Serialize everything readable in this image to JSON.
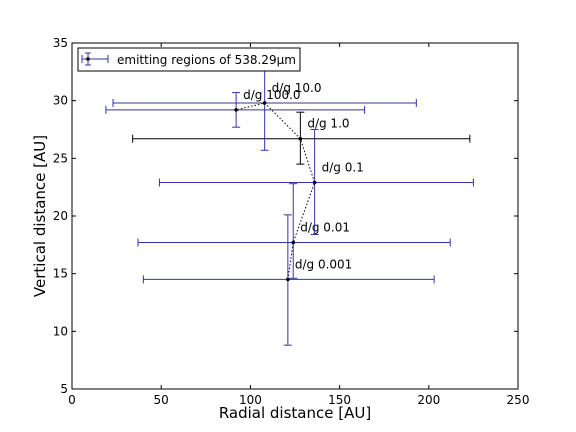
{
  "chart_data": {
    "type": "scatter",
    "xlabel": "Radial distance [AU]",
    "ylabel": "Vertical distance [AU]",
    "xlim": [
      0,
      250
    ],
    "ylim": [
      5,
      35
    ],
    "xticks": [
      0,
      50,
      100,
      150,
      200,
      250
    ],
    "yticks": [
      5,
      10,
      15,
      20,
      25,
      30,
      35
    ],
    "grid": false,
    "legend": {
      "location": "top-left",
      "entries": [
        "emitting regions of 538.29μm"
      ]
    },
    "colors": {
      "errorbar": "#3333aa",
      "highlight": "#000000",
      "curve": "#000000",
      "axis": "#000000"
    },
    "series": [
      {
        "name": "emitting regions of 538.29μm",
        "points": [
          {
            "label": "d/g 0.001",
            "x": 121,
            "y": 14.5,
            "xerr": [
              40,
              203
            ],
            "yerr": [
              8.8,
              20.1
            ]
          },
          {
            "label": "d/g 0.01",
            "x": 124,
            "y": 17.7,
            "xerr": [
              37,
              212
            ],
            "yerr": [
              14.6,
              22.8
            ]
          },
          {
            "label": "d/g 0.1",
            "x": 136,
            "y": 22.9,
            "xerr": [
              49,
              225
            ],
            "yerr": [
              18.4,
              27.5
            ]
          },
          {
            "label": "d/g 1.0",
            "x": 128,
            "y": 26.7,
            "xerr": [
              34,
              223
            ],
            "yerr": [
              24.5,
              29.0
            ],
            "highlight": true
          },
          {
            "label": "d/g 10.0",
            "x": 108,
            "y": 29.8,
            "xerr": [
              23,
              193
            ],
            "yerr": [
              25.7,
              32.8
            ]
          },
          {
            "label": "d/g 100.0",
            "x": 92,
            "y": 29.2,
            "xerr": [
              19,
              164
            ],
            "yerr": [
              27.7,
              30.7
            ]
          }
        ]
      }
    ],
    "curve_order": [
      "d/g 0.001",
      "d/g 0.01",
      "d/g 0.1",
      "d/g 1.0",
      "d/g 10.0",
      "d/g 100.0"
    ]
  }
}
